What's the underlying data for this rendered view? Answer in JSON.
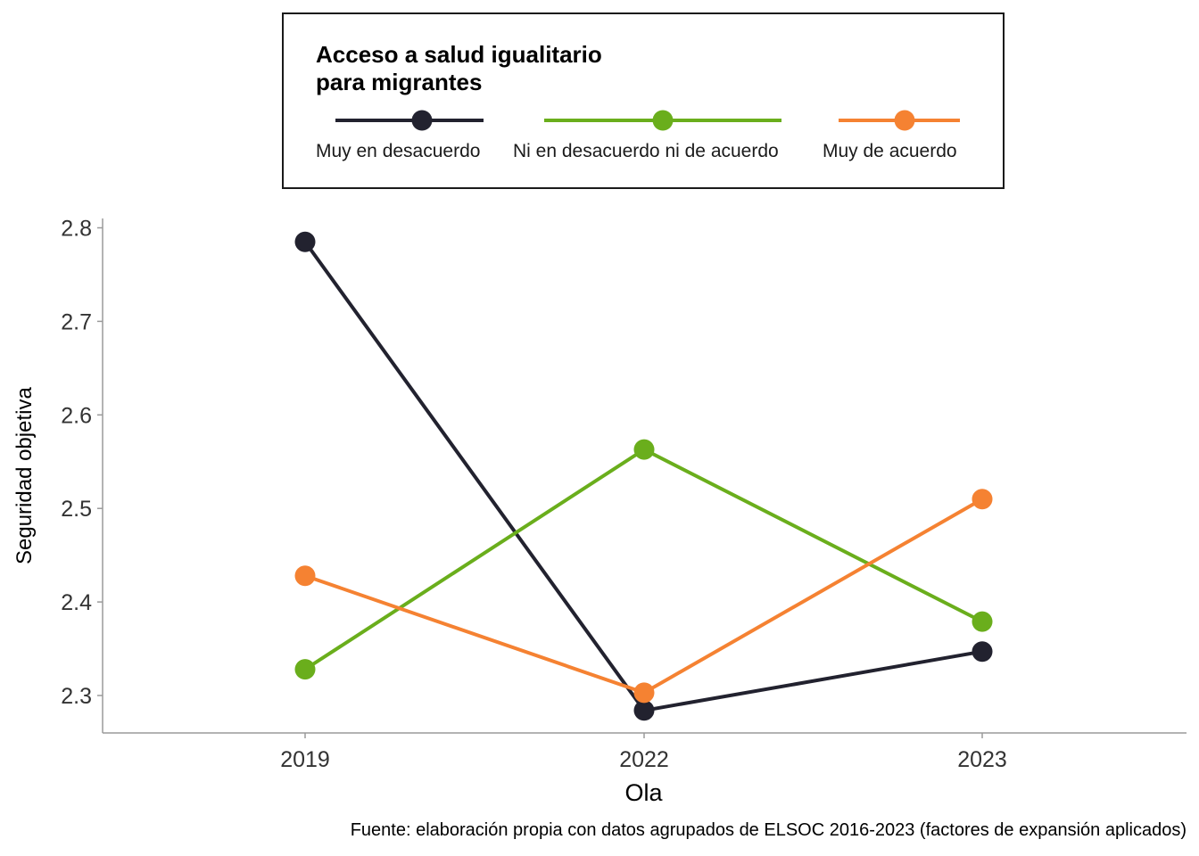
{
  "chart_data": {
    "type": "line",
    "x": [
      "2019",
      "2022",
      "2023"
    ],
    "ylim": [
      2.26,
      2.81
    ],
    "yticks": [
      "2.3",
      "2.4",
      "2.5",
      "2.6",
      "2.7",
      "2.8"
    ],
    "ylabel": "Seguridad objetiva",
    "xlabel": "Ola",
    "caption": "Fuente: elaboración propia con datos agrupados de ELSOC 2016-2023 (factores de expansión aplicados)",
    "legend": {
      "title": "Acceso a salud igualitario\npara migrantes",
      "placement": "top"
    },
    "series": [
      {
        "name": "Muy en desacuerdo",
        "color": "#22222f",
        "values": [
          2.785,
          2.284,
          2.347
        ]
      },
      {
        "name": "Ni en desacuerdo ni de acuerdo",
        "color": "#6aae1c",
        "values": [
          2.328,
          2.563,
          2.379
        ]
      },
      {
        "name": "Muy de acuerdo",
        "color": "#f58232",
        "values": [
          2.428,
          2.303,
          2.51
        ]
      }
    ],
    "grid": false
  }
}
